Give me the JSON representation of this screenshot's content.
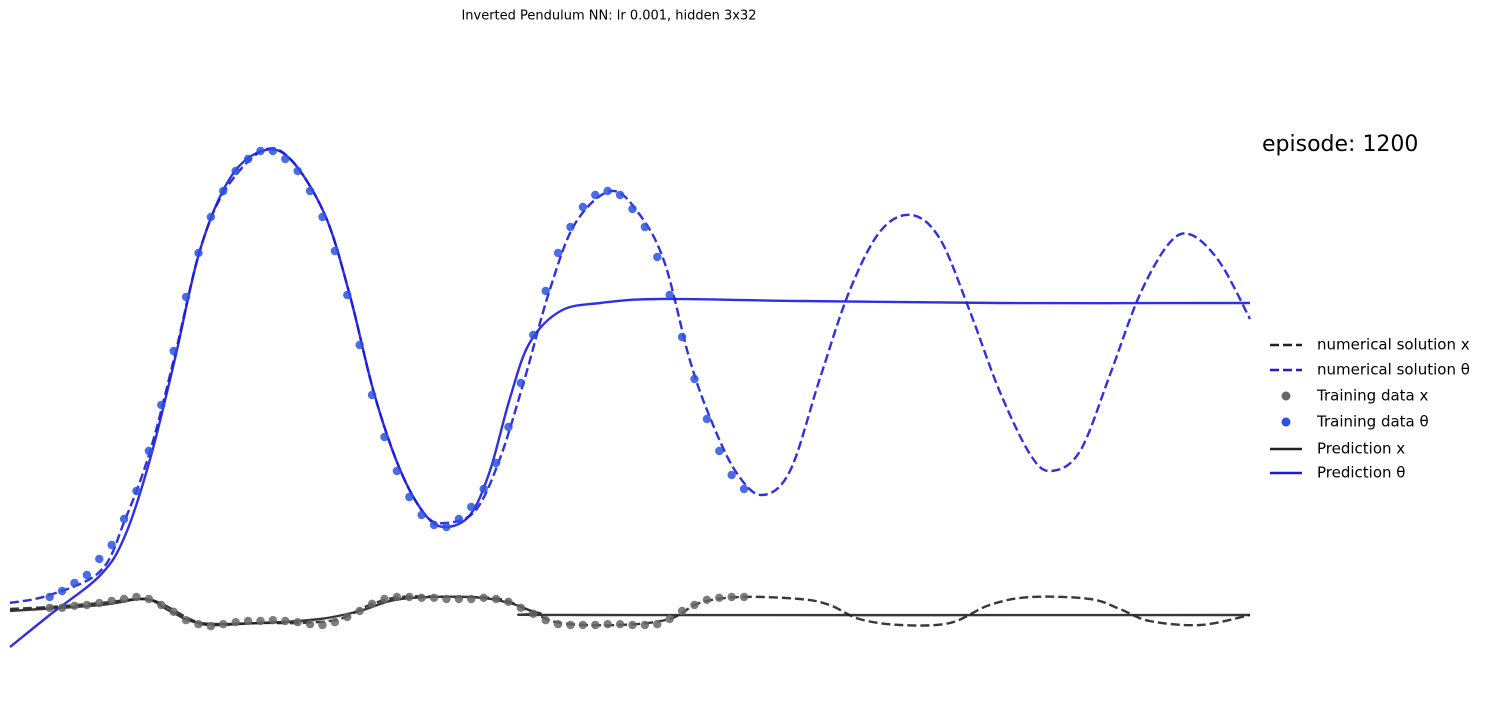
{
  "chart_data": {
    "type": "line",
    "title": "Inverted Pendulum NN: lr 0.001, hidden 3x32",
    "annotation": "episode: 1200",
    "xlim": [
      0,
      10
    ],
    "ylim": [
      -0.1,
      1.3
    ],
    "series": [
      {
        "name": "numerical solution x",
        "color": "#222222",
        "style": "dashed",
        "x": [
          0,
          0.32,
          0.73,
          1.05,
          1.21,
          1.45,
          1.61,
          2.02,
          2.34,
          2.66,
          2.9,
          3.15,
          3.55,
          3.95,
          4.19,
          4.44,
          4.92,
          5.32,
          5.56,
          5.89,
          6.37,
          6.61,
          6.85,
          7.18,
          7.58,
          7.9,
          8.23,
          8.71,
          8.95,
          9.19,
          9.6,
          10
        ],
        "values": [
          0.015,
          0.02,
          0.03,
          0.04,
          0.03,
          -0.01,
          -0.025,
          -0.02,
          -0.02,
          -0.01,
          0.025,
          0.045,
          0.045,
          0.04,
          0.01,
          -0.02,
          -0.025,
          -0.01,
          0.03,
          0.045,
          0.04,
          0.025,
          -0.01,
          -0.025,
          -0.02,
          0.025,
          0.045,
          0.04,
          0.015,
          -0.015,
          -0.025,
          0.0
        ]
      },
      {
        "name": "numerical solution θ",
        "color": "#1a1ae0",
        "style": "dashed",
        "x": [
          0,
          0.32,
          0.73,
          0.93,
          1.13,
          1.33,
          1.53,
          1.73,
          2.03,
          2.26,
          2.54,
          2.74,
          2.94,
          3.15,
          3.35,
          3.51,
          3.75,
          3.95,
          4.15,
          4.35,
          4.56,
          4.85,
          5.08,
          5.28,
          5.48,
          5.65,
          5.85,
          6.06,
          6.29,
          6.53,
          6.77,
          7.02,
          7.27,
          7.5,
          7.74,
          7.98,
          8.23,
          8.4,
          8.63,
          8.87,
          9.11,
          9.35,
          9.53,
          9.76,
          10
        ],
        "values": [
          0.03,
          0.05,
          0.11,
          0.24,
          0.41,
          0.65,
          0.91,
          1.06,
          1.16,
          1.14,
          1.0,
          0.8,
          0.55,
          0.36,
          0.25,
          0.23,
          0.26,
          0.39,
          0.59,
          0.81,
          0.98,
          1.06,
          1.0,
          0.88,
          0.64,
          0.49,
          0.36,
          0.3,
          0.36,
          0.59,
          0.81,
          0.96,
          1.0,
          0.94,
          0.76,
          0.56,
          0.4,
          0.36,
          0.41,
          0.6,
          0.8,
          0.93,
          0.95,
          0.88,
          0.74
        ]
      },
      {
        "name": "Training data x",
        "color": "#666666",
        "style": "points",
        "x": [
          0.32,
          0.42,
          0.52,
          0.62,
          0.72,
          0.82,
          0.92,
          1.02,
          1.12,
          1.22,
          1.32,
          1.42,
          1.52,
          1.62,
          1.72,
          1.82,
          1.92,
          2.02,
          2.12,
          2.22,
          2.32,
          2.42,
          2.52,
          2.62,
          2.72,
          2.82,
          2.92,
          3.02,
          3.12,
          3.22,
          3.32,
          3.42,
          3.52,
          3.62,
          3.72,
          3.82,
          3.92,
          4.02,
          4.12,
          4.22,
          4.32,
          4.42,
          4.52,
          4.62,
          4.72,
          4.82,
          4.92,
          5.02,
          5.12,
          5.22,
          5.32,
          5.42,
          5.52,
          5.62,
          5.72,
          5.82,
          5.92
        ],
        "values": [
          0.018,
          0.018,
          0.023,
          0.025,
          0.03,
          0.035,
          0.04,
          0.045,
          0.04,
          0.025,
          0.008,
          -0.013,
          -0.023,
          -0.028,
          -0.023,
          -0.018,
          -0.015,
          -0.015,
          -0.013,
          -0.015,
          -0.018,
          -0.023,
          -0.025,
          -0.018,
          -0.005,
          0.01,
          0.028,
          0.04,
          0.045,
          0.045,
          0.043,
          0.043,
          0.04,
          0.04,
          0.04,
          0.043,
          0.04,
          0.033,
          0.018,
          0.003,
          -0.013,
          -0.023,
          -0.025,
          -0.025,
          -0.025,
          -0.023,
          -0.023,
          -0.025,
          -0.025,
          -0.023,
          -0.01,
          0.01,
          0.025,
          0.038,
          0.043,
          0.045,
          0.045
        ]
      },
      {
        "name": "Training data θ",
        "color": "#2a52e0",
        "style": "points",
        "x": [
          0.32,
          0.42,
          0.52,
          0.62,
          0.72,
          0.82,
          0.92,
          1.02,
          1.12,
          1.22,
          1.32,
          1.42,
          1.52,
          1.62,
          1.72,
          1.82,
          1.92,
          2.02,
          2.12,
          2.22,
          2.32,
          2.42,
          2.52,
          2.62,
          2.72,
          2.82,
          2.92,
          3.02,
          3.12,
          3.22,
          3.32,
          3.42,
          3.52,
          3.62,
          3.72,
          3.82,
          3.92,
          4.02,
          4.12,
          4.22,
          4.32,
          4.42,
          4.52,
          4.62,
          4.72,
          4.82,
          4.92,
          5.02,
          5.12,
          5.22,
          5.32,
          5.42,
          5.52,
          5.62,
          5.72,
          5.82,
          5.92
        ],
        "values": [
          0.045,
          0.06,
          0.08,
          0.1,
          0.14,
          0.175,
          0.24,
          0.31,
          0.41,
          0.525,
          0.66,
          0.795,
          0.905,
          0.995,
          1.06,
          1.11,
          1.14,
          1.16,
          1.16,
          1.14,
          1.11,
          1.06,
          0.995,
          0.91,
          0.8,
          0.675,
          0.55,
          0.445,
          0.36,
          0.295,
          0.25,
          0.225,
          0.22,
          0.24,
          0.27,
          0.315,
          0.38,
          0.47,
          0.58,
          0.7,
          0.81,
          0.905,
          0.97,
          1.02,
          1.05,
          1.06,
          1.05,
          1.015,
          0.97,
          0.895,
          0.8,
          0.695,
          0.59,
          0.49,
          0.41,
          0.35,
          0.315
        ]
      },
      {
        "name": "Prediction x",
        "color": "#222222",
        "style": "solid",
        "x": [
          0,
          0.73,
          1.09,
          1.29,
          1.53,
          2.02,
          2.5,
          2.82,
          3.15,
          3.71,
          4.03,
          4.27,
          4.6,
          10
        ],
        "values": [
          0.01,
          0.025,
          0.04,
          0.01,
          -0.02,
          -0.02,
          -0.01,
          0.01,
          0.04,
          0.045,
          0.03,
          0.005,
          0,
          0
        ]
      },
      {
        "name": "Prediction θ",
        "color": "#1a1ae0",
        "style": "solid",
        "x": [
          0,
          0.32,
          0.73,
          0.93,
          1.13,
          1.33,
          1.53,
          1.77,
          2.03,
          2.26,
          2.54,
          2.74,
          2.94,
          3.15,
          3.35,
          3.51,
          3.71,
          3.87,
          4.03,
          4.19,
          4.44,
          4.76,
          5.24,
          6.37,
          7.98,
          10
        ],
        "values": [
          -0.08,
          0,
          0.1,
          0.2,
          0.39,
          0.64,
          0.91,
          1.09,
          1.16,
          1.14,
          1.0,
          0.8,
          0.55,
          0.36,
          0.25,
          0.22,
          0.25,
          0.36,
          0.54,
          0.68,
          0.76,
          0.78,
          0.79,
          0.785,
          0.78,
          0.78
        ]
      }
    ]
  }
}
